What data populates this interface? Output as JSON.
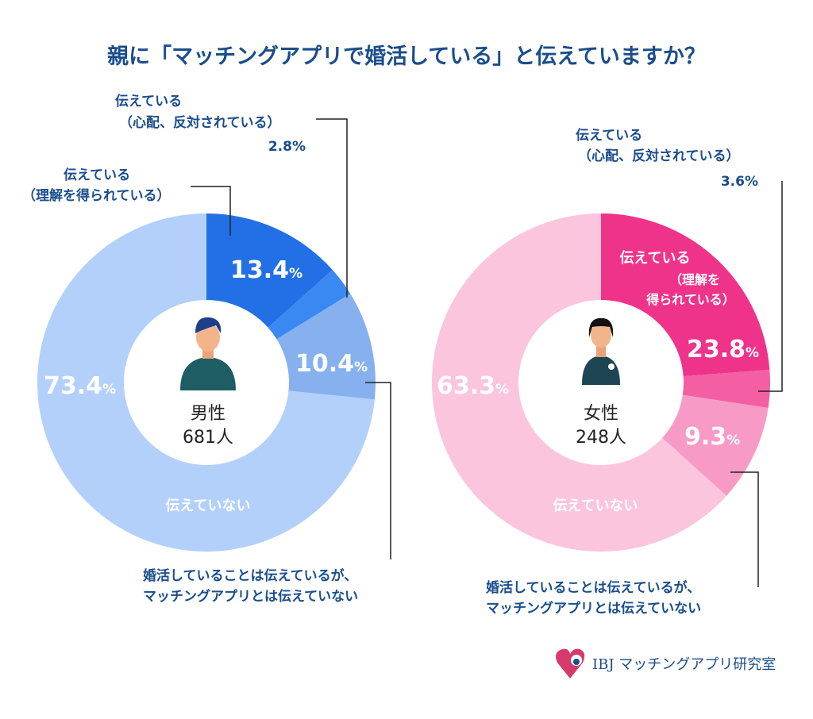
{
  "title": "親に「マッチングアプリで婚活している」と伝えていますか？",
  "chart_data": [
    {
      "type": "pie",
      "center_label": [
        "男性",
        "681人"
      ],
      "unit": "%",
      "categories": [
        "伝えている（理解を得られている）",
        "伝えている（心配、反対されている）",
        "婚活していることは伝えているが、マッチングアプリとは伝えていない",
        "伝えていない"
      ],
      "values": [
        13.4,
        2.8,
        10.4,
        73.4
      ],
      "value_labels": [
        "13.4",
        "2.8%",
        "10.4",
        "73.4"
      ],
      "colors": [
        "#2370e6",
        "#3a88f2",
        "#86b1ee",
        "#b2d0fa"
      ]
    },
    {
      "type": "pie",
      "center_label": [
        "女性",
        "248人"
      ],
      "unit": "%",
      "categories": [
        "伝えている（理解を得られている）",
        "伝えている（心配、反対されている）",
        "婚活していることは伝えているが、マッチングアプリとは伝えていない",
        "伝えていない"
      ],
      "values": [
        23.8,
        3.6,
        9.3,
        63.3
      ],
      "value_labels": [
        "23.8",
        "3.6%",
        "9.3",
        "63.3"
      ],
      "colors": [
        "#f0338a",
        "#f45ea2",
        "#f79bc6",
        "#fbc5de"
      ]
    }
  ],
  "labels": {
    "told": "伝えている",
    "understood": "（理解を得られている）",
    "understood_a": "（理解を",
    "understood_b": "得られている）",
    "worried": "（心配、反対されている）",
    "not_told": "伝えていない",
    "partial_1": "婚活していることは伝えているが、",
    "partial_2": "マッチングアプリとは伝えていない"
  },
  "logo": {
    "text": "IBJ マッチングアプリ研究室"
  },
  "title_color": "#1a4d8c"
}
